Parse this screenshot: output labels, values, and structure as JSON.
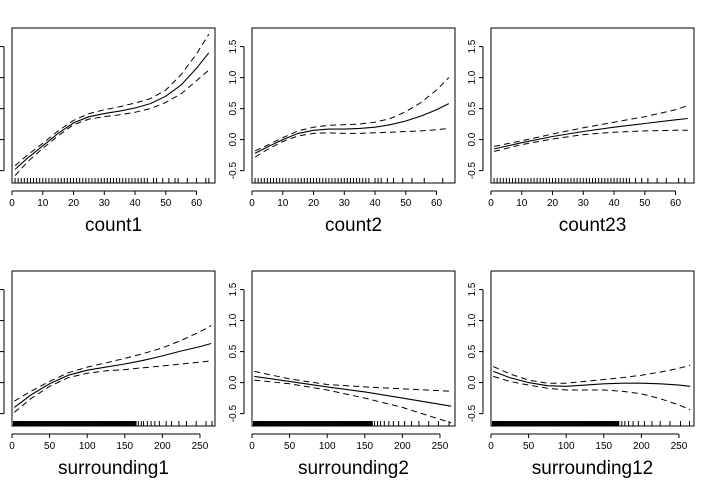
{
  "chart_data": [
    {
      "type": "line",
      "xlabel": "count1",
      "xlim": [
        0,
        66
      ],
      "ylim": [
        -0.7,
        1.8
      ],
      "xticks": [
        0,
        10,
        20,
        30,
        40,
        50,
        60
      ],
      "yticks": [
        -0.5,
        0.0,
        0.5,
        1.0,
        1.5
      ],
      "ytick_labels_visible": false,
      "series": [
        {
          "role": "fit",
          "x": [
            1,
            5,
            10,
            15,
            20,
            25,
            30,
            35,
            40,
            45,
            50,
            55,
            60,
            64
          ],
          "y": [
            -0.48,
            -0.3,
            -0.1,
            0.1,
            0.27,
            0.37,
            0.42,
            0.46,
            0.51,
            0.58,
            0.7,
            0.88,
            1.15,
            1.4
          ]
        },
        {
          "role": "upper",
          "x": [
            1,
            5,
            10,
            15,
            20,
            25,
            30,
            35,
            40,
            45,
            50,
            55,
            60,
            64
          ],
          "y": [
            -0.42,
            -0.25,
            -0.06,
            0.14,
            0.31,
            0.42,
            0.48,
            0.53,
            0.59,
            0.66,
            0.8,
            1.05,
            1.38,
            1.7
          ]
        },
        {
          "role": "lower",
          "x": [
            1,
            5,
            10,
            15,
            20,
            25,
            30,
            35,
            40,
            45,
            50,
            55,
            60,
            64
          ],
          "y": [
            -0.58,
            -0.36,
            -0.14,
            0.06,
            0.24,
            0.33,
            0.37,
            0.4,
            0.44,
            0.5,
            0.6,
            0.74,
            0.95,
            1.12
          ]
        }
      ],
      "rug": [
        1,
        2,
        3,
        4,
        5,
        6,
        7,
        8,
        9,
        10,
        11,
        12,
        13,
        14,
        15,
        16,
        17,
        18,
        19,
        20,
        21,
        22,
        23,
        24,
        25,
        26,
        27,
        28,
        29,
        30,
        31,
        32,
        33,
        34,
        35,
        36,
        37,
        38,
        39,
        40,
        41,
        42,
        43,
        44,
        46,
        47,
        49,
        51,
        53,
        54,
        57,
        60,
        63,
        64
      ]
    },
    {
      "type": "line",
      "xlabel": "count2",
      "xlim": [
        0,
        66
      ],
      "ylim": [
        -0.7,
        1.8
      ],
      "xticks": [
        0,
        10,
        20,
        30,
        40,
        50,
        60
      ],
      "yticks": [
        -0.5,
        0.0,
        0.5,
        1.0,
        1.5
      ],
      "ytick_labels_visible": true,
      "ytick_labels": [
        "-0.5",
        "0.0",
        "0.5",
        "1.0",
        "1.5"
      ],
      "series": [
        {
          "role": "fit",
          "x": [
            1,
            5,
            10,
            15,
            20,
            25,
            30,
            35,
            40,
            45,
            50,
            55,
            60,
            64
          ],
          "y": [
            -0.22,
            -0.12,
            0.0,
            0.1,
            0.15,
            0.17,
            0.17,
            0.18,
            0.2,
            0.24,
            0.3,
            0.38,
            0.48,
            0.58
          ]
        },
        {
          "role": "upper",
          "x": [
            1,
            5,
            10,
            15,
            20,
            25,
            30,
            35,
            40,
            45,
            50,
            55,
            60,
            64
          ],
          "y": [
            -0.18,
            -0.09,
            0.03,
            0.14,
            0.2,
            0.23,
            0.24,
            0.25,
            0.28,
            0.34,
            0.45,
            0.6,
            0.8,
            1.0
          ]
        },
        {
          "role": "lower",
          "x": [
            1,
            5,
            10,
            15,
            20,
            25,
            30,
            35,
            40,
            45,
            50,
            55,
            60,
            64
          ],
          "y": [
            -0.28,
            -0.16,
            -0.03,
            0.06,
            0.1,
            0.11,
            0.1,
            0.1,
            0.11,
            0.12,
            0.13,
            0.14,
            0.16,
            0.18
          ]
        }
      ],
      "rug": [
        1,
        2,
        3,
        4,
        5,
        6,
        7,
        8,
        9,
        10,
        11,
        12,
        13,
        14,
        15,
        16,
        17,
        18,
        19,
        20,
        21,
        22,
        23,
        24,
        25,
        26,
        27,
        28,
        29,
        30,
        31,
        32,
        33,
        34,
        35,
        36,
        37,
        38,
        40,
        41,
        42,
        44,
        46,
        49,
        52,
        56,
        62
      ]
    },
    {
      "type": "line",
      "xlabel": "count23",
      "xlim": [
        0,
        66
      ],
      "ylim": [
        -0.7,
        1.8
      ],
      "xticks": [
        0,
        10,
        20,
        30,
        40,
        50,
        60
      ],
      "yticks": [
        -0.5,
        0.0,
        0.5,
        1.0,
        1.5
      ],
      "ytick_labels_visible": true,
      "ytick_labels": [
        "-0.5",
        "0.0",
        "0.5",
        "1.0",
        "1.5"
      ],
      "series": [
        {
          "role": "fit",
          "x": [
            1,
            10,
            20,
            30,
            40,
            50,
            60,
            64
          ],
          "y": [
            -0.15,
            -0.05,
            0.05,
            0.13,
            0.2,
            0.26,
            0.32,
            0.34
          ]
        },
        {
          "role": "upper",
          "x": [
            1,
            10,
            20,
            30,
            40,
            50,
            60,
            64
          ],
          "y": [
            -0.11,
            -0.02,
            0.09,
            0.19,
            0.28,
            0.37,
            0.48,
            0.55
          ]
        },
        {
          "role": "lower",
          "x": [
            1,
            10,
            20,
            30,
            40,
            50,
            60,
            64
          ],
          "y": [
            -0.19,
            -0.08,
            0.01,
            0.08,
            0.12,
            0.14,
            0.15,
            0.15
          ]
        }
      ],
      "rug": [
        1,
        2,
        3,
        4,
        5,
        6,
        7,
        8,
        9,
        10,
        11,
        12,
        13,
        14,
        15,
        16,
        17,
        18,
        19,
        20,
        21,
        22,
        23,
        24,
        25,
        26,
        27,
        28,
        29,
        30,
        31,
        32,
        33,
        34,
        35,
        36,
        37,
        38,
        39,
        40,
        41,
        42,
        43,
        44,
        45,
        47,
        49,
        51,
        54,
        57,
        61,
        63
      ]
    },
    {
      "type": "line",
      "xlabel": "surrounding1",
      "xlim": [
        0,
        270
      ],
      "ylim": [
        -0.7,
        1.8
      ],
      "xticks": [
        0,
        50,
        100,
        150,
        200,
        250
      ],
      "yticks": [
        -0.5,
        0.0,
        0.5,
        1.0,
        1.5
      ],
      "ytick_labels_visible": false,
      "series": [
        {
          "role": "fit",
          "x": [
            3,
            25,
            50,
            75,
            100,
            125,
            150,
            175,
            200,
            225,
            250,
            265
          ],
          "y": [
            -0.4,
            -0.2,
            -0.02,
            0.12,
            0.2,
            0.25,
            0.3,
            0.36,
            0.43,
            0.51,
            0.58,
            0.63
          ]
        },
        {
          "role": "upper",
          "x": [
            3,
            25,
            50,
            75,
            100,
            125,
            150,
            175,
            200,
            225,
            250,
            265
          ],
          "y": [
            -0.3,
            -0.14,
            0.02,
            0.16,
            0.25,
            0.32,
            0.39,
            0.47,
            0.56,
            0.68,
            0.82,
            0.92
          ]
        },
        {
          "role": "lower",
          "x": [
            3,
            25,
            50,
            75,
            100,
            125,
            150,
            175,
            200,
            225,
            250,
            265
          ],
          "y": [
            -0.48,
            -0.26,
            -0.06,
            0.08,
            0.15,
            0.19,
            0.21,
            0.24,
            0.27,
            0.3,
            0.33,
            0.35
          ]
        }
      ],
      "rug_range": [
        2,
        165
      ],
      "rug_extra": [
        168,
        172,
        175,
        180,
        185,
        190,
        196,
        205,
        212,
        222,
        232,
        245,
        258,
        266
      ]
    },
    {
      "type": "line",
      "xlabel": "surrounding2",
      "xlim": [
        0,
        270
      ],
      "ylim": [
        -0.7,
        1.8
      ],
      "xticks": [
        0,
        50,
        100,
        150,
        200,
        250
      ],
      "yticks": [
        -0.5,
        0.0,
        0.5,
        1.0,
        1.5
      ],
      "ytick_labels_visible": true,
      "ytick_labels": [
        "-0.5",
        "0.0",
        "0.5",
        "1.0",
        "1.5"
      ],
      "series": [
        {
          "role": "fit",
          "x": [
            3,
            50,
            100,
            150,
            200,
            265
          ],
          "y": [
            0.1,
            0.02,
            -0.07,
            -0.15,
            -0.25,
            -0.38
          ]
        },
        {
          "role": "upper",
          "x": [
            3,
            50,
            100,
            150,
            200,
            265
          ],
          "y": [
            0.18,
            0.06,
            -0.03,
            -0.07,
            -0.1,
            -0.14
          ]
        },
        {
          "role": "lower",
          "x": [
            3,
            50,
            100,
            150,
            200,
            265
          ],
          "y": [
            0.04,
            -0.02,
            -0.12,
            -0.25,
            -0.4,
            -0.65
          ]
        }
      ],
      "rug_range": [
        2,
        160
      ],
      "rug_extra": [
        163,
        167,
        171,
        176,
        182,
        188,
        195,
        203,
        212,
        222,
        235,
        248,
        262
      ]
    },
    {
      "type": "line",
      "xlabel": "surrounding12",
      "xlim": [
        0,
        270
      ],
      "ylim": [
        -0.7,
        1.8
      ],
      "xticks": [
        0,
        50,
        100,
        150,
        200,
        250
      ],
      "yticks": [
        -0.5,
        0.0,
        0.5,
        1.0,
        1.5
      ],
      "ytick_labels_visible": true,
      "ytick_labels": [
        "-0.5",
        "0.0",
        "0.5",
        "1.0",
        "1.5"
      ],
      "series": [
        {
          "role": "fit",
          "x": [
            3,
            25,
            50,
            75,
            100,
            125,
            150,
            175,
            200,
            225,
            250,
            265
          ],
          "y": [
            0.18,
            0.08,
            0.0,
            -0.05,
            -0.06,
            -0.04,
            -0.02,
            -0.01,
            -0.01,
            -0.02,
            -0.04,
            -0.06
          ]
        },
        {
          "role": "upper",
          "x": [
            3,
            25,
            50,
            75,
            100,
            125,
            150,
            175,
            200,
            225,
            250,
            265
          ],
          "y": [
            0.26,
            0.14,
            0.04,
            -0.01,
            -0.01,
            0.02,
            0.05,
            0.08,
            0.12,
            0.17,
            0.23,
            0.28
          ]
        },
        {
          "role": "lower",
          "x": [
            3,
            25,
            50,
            75,
            100,
            125,
            150,
            175,
            200,
            225,
            250,
            265
          ],
          "y": [
            0.1,
            0.02,
            -0.04,
            -0.09,
            -0.12,
            -0.12,
            -0.12,
            -0.14,
            -0.18,
            -0.26,
            -0.36,
            -0.44
          ]
        }
      ],
      "rug_range": [
        2,
        170
      ],
      "rug_extra": [
        174,
        178,
        183,
        189,
        196,
        204,
        214,
        225,
        238,
        252,
        264
      ]
    }
  ]
}
